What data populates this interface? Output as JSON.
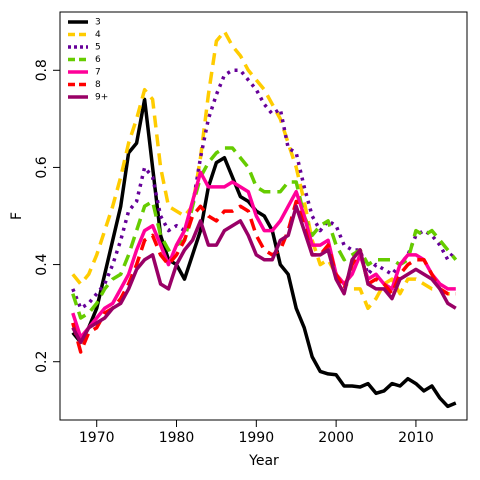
{
  "chart_data": {
    "type": "line",
    "xlabel": "Year",
    "ylabel": "F",
    "legend": "top-left",
    "x": [
      1967,
      1968,
      1969,
      1970,
      1971,
      1972,
      1973,
      1974,
      1975,
      1976,
      1977,
      1978,
      1979,
      1980,
      1981,
      1982,
      1983,
      1984,
      1985,
      1986,
      1987,
      1988,
      1989,
      1990,
      1991,
      1992,
      1993,
      1994,
      1995,
      1996,
      1997,
      1998,
      1999,
      2000,
      2001,
      2002,
      2003,
      2004,
      2005,
      2006,
      2007,
      2008,
      2009,
      2010,
      2011,
      2012,
      2013,
      2014,
      2015
    ],
    "xlim": [
      1965.4,
      2016.4
    ],
    "xticks": [
      1970,
      1980,
      1990,
      2000,
      2010
    ],
    "ylim": [
      0.08,
      0.92
    ],
    "yticks": [
      0.2,
      0.4,
      0.6,
      0.8
    ],
    "series": [
      {
        "name": "3",
        "color": "#000000",
        "linestyle": "solid",
        "values": [
          0.26,
          0.24,
          0.27,
          0.31,
          0.38,
          0.45,
          0.52,
          0.63,
          0.65,
          0.74,
          0.6,
          0.46,
          0.41,
          0.4,
          0.37,
          0.42,
          0.47,
          0.56,
          0.61,
          0.62,
          0.58,
          0.54,
          0.53,
          0.51,
          0.5,
          0.47,
          0.4,
          0.38,
          0.31,
          0.27,
          0.21,
          0.18,
          0.175,
          0.173,
          0.15,
          0.15,
          0.148,
          0.155,
          0.135,
          0.14,
          0.155,
          0.15,
          0.165,
          0.155,
          0.14,
          0.15,
          0.125,
          0.108,
          0.115
        ]
      },
      {
        "name": "4",
        "color": "#ffcc00",
        "linestyle": "dashed",
        "values": [
          0.38,
          0.36,
          0.38,
          0.42,
          0.47,
          0.52,
          0.58,
          0.65,
          0.7,
          0.76,
          0.74,
          0.6,
          0.52,
          0.51,
          0.5,
          0.52,
          0.62,
          0.75,
          0.86,
          0.88,
          0.85,
          0.83,
          0.8,
          0.78,
          0.76,
          0.73,
          0.7,
          0.65,
          0.6,
          0.53,
          0.45,
          0.4,
          0.41,
          0.38,
          0.36,
          0.35,
          0.35,
          0.31,
          0.33,
          0.36,
          0.37,
          0.34,
          0.37,
          0.37,
          0.36,
          0.35,
          0.35,
          0.34,
          0.34
        ]
      },
      {
        "name": "5",
        "color": "#660099",
        "linestyle": "dotted",
        "values": [
          0.35,
          0.31,
          0.32,
          0.34,
          0.36,
          0.4,
          0.45,
          0.51,
          0.53,
          0.6,
          0.58,
          0.5,
          0.47,
          0.48,
          0.47,
          0.52,
          0.62,
          0.7,
          0.75,
          0.79,
          0.8,
          0.8,
          0.78,
          0.76,
          0.73,
          0.71,
          0.72,
          0.64,
          0.63,
          0.56,
          0.5,
          0.47,
          0.49,
          0.48,
          0.44,
          0.43,
          0.43,
          0.38,
          0.4,
          0.39,
          0.38,
          0.4,
          0.42,
          0.46,
          0.47,
          0.46,
          0.44,
          0.41,
          0.43
        ]
      },
      {
        "name": "6",
        "color": "#66cc00",
        "linestyle": "dashed",
        "values": [
          0.34,
          0.29,
          0.3,
          0.32,
          0.35,
          0.37,
          0.38,
          0.42,
          0.47,
          0.52,
          0.53,
          0.46,
          0.43,
          0.44,
          0.45,
          0.52,
          0.58,
          0.61,
          0.63,
          0.64,
          0.64,
          0.62,
          0.6,
          0.56,
          0.55,
          0.55,
          0.55,
          0.57,
          0.57,
          0.5,
          0.46,
          0.48,
          0.49,
          0.44,
          0.41,
          0.42,
          0.43,
          0.4,
          0.41,
          0.41,
          0.41,
          0.4,
          0.41,
          0.47,
          0.46,
          0.47,
          0.45,
          0.43,
          0.41
        ]
      },
      {
        "name": "7",
        "color": "#ff0099",
        "linestyle": "solid",
        "values": [
          0.3,
          0.25,
          0.27,
          0.29,
          0.31,
          0.32,
          0.35,
          0.38,
          0.43,
          0.47,
          0.48,
          0.44,
          0.4,
          0.44,
          0.47,
          0.53,
          0.59,
          0.56,
          0.56,
          0.56,
          0.57,
          0.56,
          0.55,
          0.5,
          0.47,
          0.47,
          0.49,
          0.52,
          0.55,
          0.5,
          0.44,
          0.44,
          0.45,
          0.38,
          0.36,
          0.38,
          0.42,
          0.37,
          0.38,
          0.36,
          0.35,
          0.4,
          0.42,
          0.42,
          0.41,
          0.38,
          0.36,
          0.35,
          0.35
        ]
      },
      {
        "name": "8",
        "color": "#ff0000",
        "linestyle": "dashed",
        "values": [
          0.28,
          0.22,
          0.26,
          0.27,
          0.3,
          0.31,
          0.33,
          0.36,
          0.4,
          0.45,
          0.46,
          0.42,
          0.4,
          0.42,
          0.45,
          0.5,
          0.52,
          0.5,
          0.49,
          0.51,
          0.51,
          0.52,
          0.51,
          0.46,
          0.43,
          0.42,
          0.43,
          0.47,
          0.53,
          0.48,
          0.42,
          0.42,
          0.44,
          0.38,
          0.35,
          0.4,
          0.43,
          0.36,
          0.37,
          0.36,
          0.34,
          0.38,
          0.4,
          0.41,
          0.41,
          0.38,
          0.35,
          0.34,
          0.34
        ]
      },
      {
        "name": "9+",
        "color": "#990066",
        "linestyle": "solid",
        "values": [
          0.27,
          0.24,
          0.27,
          0.28,
          0.29,
          0.31,
          0.32,
          0.35,
          0.39,
          0.41,
          0.42,
          0.36,
          0.35,
          0.4,
          0.43,
          0.45,
          0.49,
          0.44,
          0.44,
          0.47,
          0.48,
          0.49,
          0.46,
          0.42,
          0.41,
          0.41,
          0.45,
          0.46,
          0.52,
          0.47,
          0.42,
          0.42,
          0.43,
          0.37,
          0.34,
          0.41,
          0.43,
          0.36,
          0.35,
          0.35,
          0.33,
          0.37,
          0.38,
          0.39,
          0.38,
          0.37,
          0.35,
          0.32,
          0.31
        ]
      }
    ]
  }
}
